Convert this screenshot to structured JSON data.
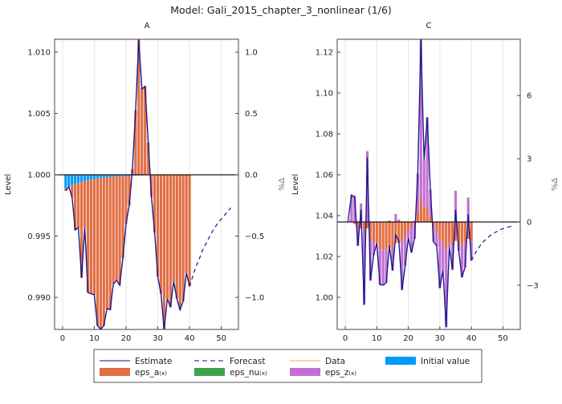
{
  "title": "Model: Gali_2015_chapter_3_nonlinear  (1/6)",
  "colors": {
    "estimate": "#1a1a8c",
    "forecast": "#1a1a8c",
    "data": "#f5a678",
    "eps_a": "#e26f46",
    "eps_nu": "#3da44d",
    "eps_z": "#c271d2",
    "initial_value": "#009af9"
  },
  "legend": {
    "placement": "bottom",
    "items": [
      {
        "label": "Estimate",
        "kind": "line",
        "color_key": "estimate"
      },
      {
        "label": "Forecast",
        "kind": "dash",
        "color_key": "forecast"
      },
      {
        "label": "Data",
        "kind": "line",
        "color_key": "data"
      },
      {
        "label": "Initial value",
        "kind": "box",
        "color_key": "initial_value"
      },
      {
        "label": "eps_a",
        "sub": "(x)",
        "kind": "box",
        "color_key": "eps_a"
      },
      {
        "label": "eps_nu",
        "sub": "(x)",
        "kind": "box",
        "color_key": "eps_nu"
      },
      {
        "label": "eps_z",
        "sub": "(x)",
        "kind": "box",
        "color_key": "eps_z"
      }
    ]
  },
  "chart_data": [
    {
      "type": "bar",
      "title": "A",
      "ylabel": "Level",
      "ylabel_right": "%Δ",
      "xlim": [
        -2.5,
        55.4
      ],
      "ylim": [
        0.98739,
        1.01105
      ],
      "ylim_right": [
        -1.261,
        1.105
      ],
      "xticks": [
        0,
        10,
        20,
        30,
        40,
        50
      ],
      "yticks": [
        0.99,
        0.995,
        1.0,
        1.005,
        1.01
      ],
      "ytick_labels": [
        "0.990",
        "0.995",
        "1.000",
        "1.005",
        "1.010"
      ],
      "yticks_right": [
        -1.0,
        -0.5,
        0.0,
        0.5,
        1.0
      ],
      "ytick_labels_right": [
        "−1.0",
        "−0.5",
        "0.0",
        "0.5",
        "1.0"
      ],
      "grid": true,
      "estimate": [
        -0.13,
        -0.1,
        -0.18,
        -0.45,
        -0.43,
        -0.84,
        -0.43,
        -0.96,
        -0.97,
        -0.98,
        -1.23,
        -1.26,
        -1.23,
        -1.09,
        -1.1,
        -0.89,
        -0.86,
        -0.9,
        -0.68,
        -0.4,
        -0.25,
        0.04,
        0.52,
        1.1,
        0.7,
        0.72,
        0.26,
        -0.18,
        -0.47,
        -0.83,
        -0.97,
        -1.26,
        -1.01,
        -1.08,
        -0.87,
        -1.01,
        -1.1,
        -1.03,
        -0.8,
        -0.91
      ],
      "forecast": [
        -0.91,
        -0.83,
        -0.75,
        -0.69,
        -0.62,
        -0.57,
        -0.52,
        -0.47,
        -0.43,
        -0.39,
        -0.36,
        -0.33,
        -0.3,
        -0.27
      ],
      "initial_value": [
        -0.11,
        -0.1,
        -0.085,
        -0.075,
        -0.066,
        -0.058,
        -0.051,
        -0.045,
        -0.04,
        -0.035,
        -0.03,
        -0.027,
        -0.024,
        -0.021,
        -0.018,
        -0.016,
        -0.014,
        -0.012,
        -0.011,
        -0.01,
        -0.008,
        -0.007,
        -0.006,
        -0.005,
        -0.004,
        -0.004,
        -0.003,
        -0.003,
        0,
        0,
        0,
        0,
        0,
        0,
        0,
        0,
        0,
        0,
        0,
        0
      ],
      "eps_a": [
        -0.02,
        0.0,
        -0.095,
        -0.375,
        -0.364,
        -0.782,
        -0.379,
        -0.915,
        -0.93,
        -0.945,
        -1.2,
        -1.233,
        -1.206,
        -1.069,
        -1.082,
        -0.874,
        -0.846,
        -0.888,
        -0.669,
        -0.39,
        -0.242,
        0.047,
        0.526,
        1.105,
        0.704,
        0.724,
        0.263,
        -0.177,
        -0.47,
        -0.83,
        -0.97,
        -1.26,
        -1.01,
        -1.08,
        -0.87,
        -1.01,
        -1.1,
        -1.03,
        -0.8,
        -0.91
      ],
      "eps_z": [],
      "eps_nu": []
    },
    {
      "type": "bar",
      "title": "C",
      "ylabel": "Level",
      "ylabel_right": "%Δ",
      "xlim": [
        -2.55,
        55.5
      ],
      "ylim": [
        0.9843,
        1.1263
      ],
      "ylim_right": [
        -5.1,
        8.67
      ],
      "xticks": [
        0,
        10,
        20,
        30,
        40,
        50
      ],
      "yticks": [
        1.0,
        1.02,
        1.04,
        1.06,
        1.08,
        1.1,
        1.12
      ],
      "ytick_labels": [
        "1.00",
        "1.02",
        "1.04",
        "1.06",
        "1.08",
        "1.10",
        "1.12"
      ],
      "yticks_right": [
        -3,
        0,
        3,
        6
      ],
      "ytick_labels_right": [
        "−3",
        "0",
        "3",
        "6"
      ],
      "grid": true,
      "estimate": [
        0.2,
        1.28,
        1.16,
        -1.13,
        0.58,
        -3.93,
        3.06,
        -2.78,
        -1.58,
        -1.0,
        -2.97,
        -3.0,
        -2.88,
        -1.13,
        -2.31,
        -0.62,
        -0.88,
        -3.23,
        -2.08,
        -0.75,
        -1.45,
        -0.75,
        2.3,
        8.65,
        2.94,
        4.97,
        1.54,
        -0.94,
        -1.13,
        -3.14,
        -2.27,
        -5.0,
        -1.19,
        -2.27,
        0.58,
        -1.38,
        -2.63,
        -2.15,
        0.36,
        -1.83
      ],
      "forecast": [
        -1.83,
        -1.54,
        -1.29,
        -1.08,
        -0.91,
        -0.77,
        -0.64,
        -0.54,
        -0.46,
        -0.38,
        -0.32,
        -0.27,
        -0.23,
        -0.19
      ],
      "initial_value": [],
      "eps_a": [
        0,
        0,
        -0.1,
        -0.3,
        -0.3,
        -0.4,
        -0.3,
        -0.9,
        -0.9,
        -1.0,
        -1.3,
        -1.3,
        -1.3,
        -1.2,
        -1.2,
        -1.0,
        -1.0,
        -0.9,
        -0.7,
        -0.4,
        -0.25,
        0.05,
        0.5,
        1.1,
        0.7,
        0.7,
        0.25,
        -0.2,
        -0.5,
        -0.85,
        -1.0,
        -1.3,
        -1.0,
        -1.1,
        -0.9,
        -1.0,
        -1.1,
        -1.0,
        -0.8,
        -0.9
      ],
      "eps_z": [
        0.2,
        1.28,
        1.26,
        -0.83,
        0.88,
        -3.53,
        3.36,
        -1.88,
        -0.68,
        0.0,
        -1.67,
        -1.7,
        -1.58,
        0.07,
        -1.11,
        0.38,
        0.12,
        -2.33,
        -1.38,
        -0.35,
        -1.2,
        -0.8,
        1.8,
        7.55,
        2.24,
        4.27,
        1.29,
        -0.74,
        -0.63,
        -2.29,
        -1.27,
        -3.7,
        -0.19,
        -1.17,
        1.48,
        -0.38,
        -1.53,
        -1.15,
        1.16,
        -0.93
      ],
      "eps_nu": []
    }
  ]
}
